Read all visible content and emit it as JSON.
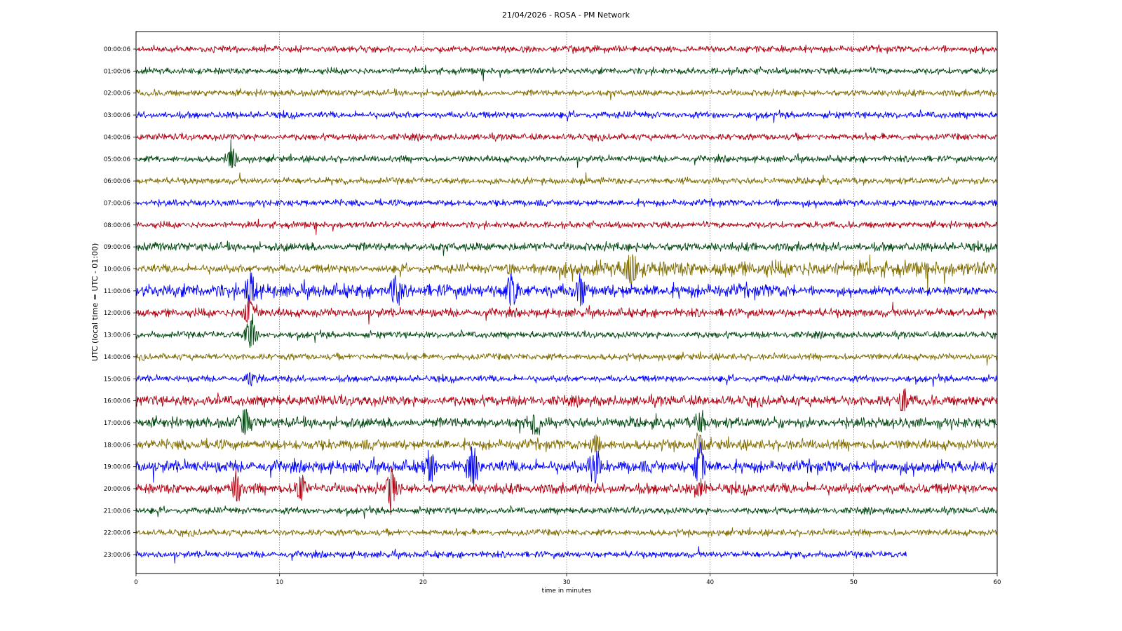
{
  "chart_data": {
    "type": "line",
    "title": "21/04/2026 - ROSA - PM Network",
    "xlabel": "time in minutes",
    "ylabel": "UTC (local time = UTC - 01:00)",
    "xlim": [
      0,
      60
    ],
    "x_ticks": [
      "0",
      "10",
      "20",
      "30",
      "40",
      "50",
      "60"
    ],
    "grid": "vertical dotted at 10-minute ticks",
    "colors": [
      "#b00010",
      "#00470f",
      "#7f6c00",
      "#0000ff"
    ],
    "series": [
      {
        "label": "00:00:06",
        "color": "#b00010",
        "end_minute": 60,
        "events": []
      },
      {
        "label": "01:00:06",
        "color": "#00470f",
        "end_minute": 60,
        "events": []
      },
      {
        "label": "02:00:06",
        "color": "#7f6c00",
        "end_minute": 60,
        "events": []
      },
      {
        "label": "03:00:06",
        "color": "#0000ff",
        "end_minute": 60,
        "events": []
      },
      {
        "label": "04:00:06",
        "color": "#b00010",
        "end_minute": 60,
        "events": []
      },
      {
        "label": "05:00:06",
        "color": "#00470f",
        "end_minute": 60,
        "events": [
          {
            "minute": 6.7,
            "amp": 16
          }
        ]
      },
      {
        "label": "06:00:06",
        "color": "#7f6c00",
        "end_minute": 60,
        "events": []
      },
      {
        "label": "07:00:06",
        "color": "#0000ff",
        "end_minute": 60,
        "events": []
      },
      {
        "label": "08:00:06",
        "color": "#b00010",
        "end_minute": 60,
        "events": []
      },
      {
        "label": "09:00:06",
        "color": "#00470f",
        "end_minute": 60,
        "events": []
      },
      {
        "label": "10:00:06",
        "color": "#7f6c00",
        "end_minute": 60,
        "events": [
          {
            "minute": 26.2,
            "amp": 8
          },
          {
            "minute": 34.5,
            "amp": 30
          }
        ]
      },
      {
        "label": "11:00:06",
        "color": "#0000ff",
        "end_minute": 60,
        "events": [
          {
            "minute": 8.0,
            "amp": 24
          },
          {
            "minute": 18.0,
            "amp": 20
          },
          {
            "minute": 26.1,
            "amp": 30
          },
          {
            "minute": 31.0,
            "amp": 22
          }
        ]
      },
      {
        "label": "12:00:06",
        "color": "#b00010",
        "end_minute": 60,
        "events": [
          {
            "minute": 7.9,
            "amp": 22
          }
        ]
      },
      {
        "label": "13:00:06",
        "color": "#00470f",
        "end_minute": 60,
        "events": [
          {
            "minute": 8.0,
            "amp": 26
          }
        ]
      },
      {
        "label": "14:00:06",
        "color": "#7f6c00",
        "end_minute": 60,
        "events": []
      },
      {
        "label": "15:00:06",
        "color": "#0000ff",
        "end_minute": 60,
        "events": [
          {
            "minute": 8.0,
            "amp": 10
          }
        ]
      },
      {
        "label": "16:00:06",
        "color": "#b00010",
        "end_minute": 60,
        "events": [
          {
            "minute": 53.5,
            "amp": 18
          }
        ]
      },
      {
        "label": "17:00:06",
        "color": "#00470f",
        "end_minute": 60,
        "events": [
          {
            "minute": 7.6,
            "amp": 20
          },
          {
            "minute": 27.8,
            "amp": 22
          },
          {
            "minute": 39.3,
            "amp": 16
          }
        ]
      },
      {
        "label": "18:00:06",
        "color": "#7f6c00",
        "end_minute": 60,
        "events": [
          {
            "minute": 32.0,
            "amp": 16
          },
          {
            "minute": 39.3,
            "amp": 20
          }
        ]
      },
      {
        "label": "19:00:06",
        "color": "#0000ff",
        "end_minute": 60,
        "events": [
          {
            "minute": 20.5,
            "amp": 24
          },
          {
            "minute": 23.5,
            "amp": 26
          },
          {
            "minute": 32.0,
            "amp": 30
          },
          {
            "minute": 39.3,
            "amp": 34
          }
        ]
      },
      {
        "label": "20:00:06",
        "color": "#b00010",
        "end_minute": 60,
        "events": [
          {
            "minute": 7.0,
            "amp": 22
          },
          {
            "minute": 11.5,
            "amp": 20
          },
          {
            "minute": 17.8,
            "amp": 28
          },
          {
            "minute": 39.3,
            "amp": 14
          }
        ]
      },
      {
        "label": "21:00:06",
        "color": "#00470f",
        "end_minute": 60,
        "events": []
      },
      {
        "label": "22:00:06",
        "color": "#7f6c00",
        "end_minute": 60,
        "events": []
      },
      {
        "label": "23:00:06",
        "color": "#0000ff",
        "end_minute": 53.7,
        "events": []
      }
    ]
  }
}
